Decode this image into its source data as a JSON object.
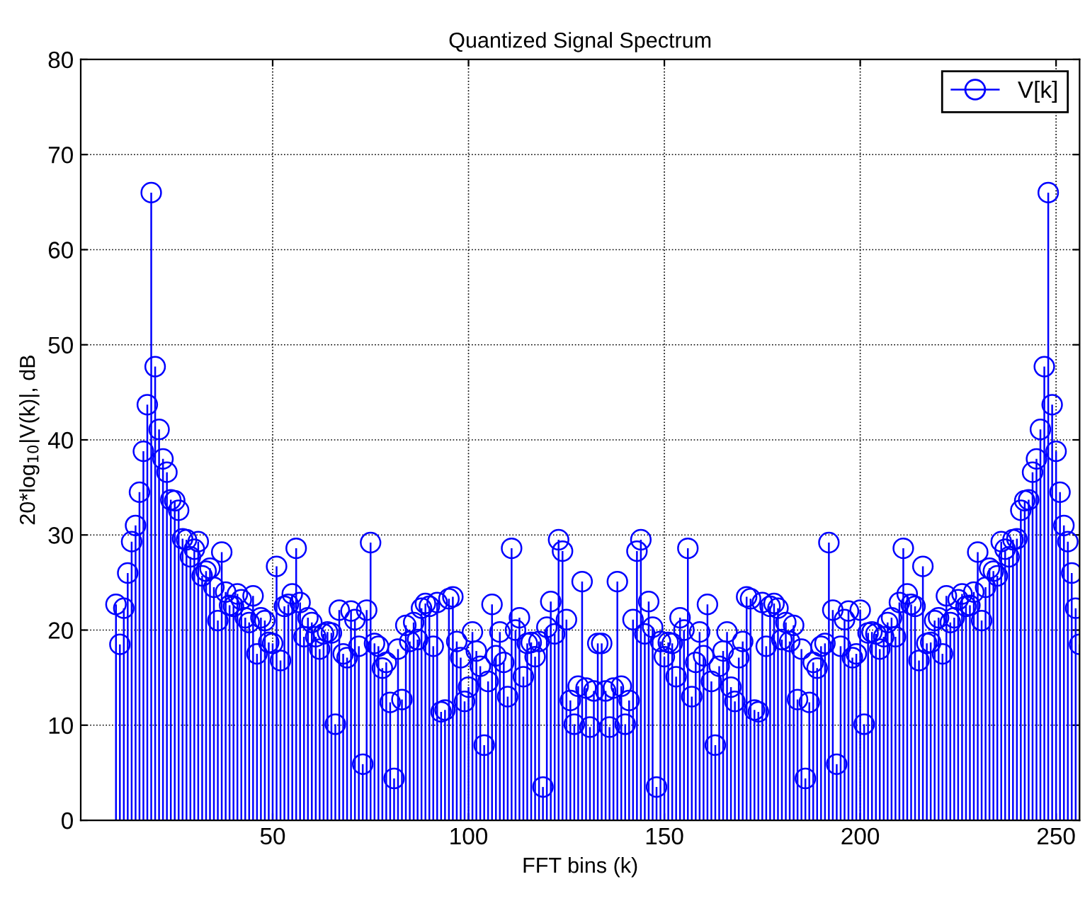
{
  "chart_data": {
    "type": "lollipop",
    "title": "Quantized Signal Spectrum",
    "xlabel": "FFT bins (k)",
    "ylabel": "20*log$_{10}$|V(k)|, dB",
    "xlim": [
      1,
      256
    ],
    "xticks": [
      50,
      100,
      150,
      200,
      250
    ],
    "ylim": [
      0,
      80
    ],
    "yticks": [
      0,
      10,
      20,
      30,
      40,
      50,
      60,
      70,
      80
    ],
    "grid": true,
    "legend": "top right",
    "marker": "circle",
    "series": [
      {
        "name": "V[k]",
        "color": "#0000ff",
        "x": [
          10,
          11,
          12,
          13,
          14,
          15,
          16,
          17,
          18,
          19,
          20,
          21,
          22,
          23,
          24,
          25,
          26,
          27,
          28,
          29,
          30,
          31,
          32,
          33,
          34,
          35,
          36,
          37,
          38,
          39,
          40,
          41,
          42,
          43,
          44,
          45,
          46,
          47,
          48,
          49,
          50,
          51,
          52,
          53,
          54,
          55,
          56,
          57,
          58,
          59,
          60,
          61,
          62,
          63,
          64,
          65,
          66,
          67,
          68,
          69,
          70,
          71,
          72,
          73,
          74,
          75,
          76,
          77,
          78,
          79,
          80,
          81,
          82,
          83,
          84,
          85,
          86,
          87,
          88,
          89,
          90,
          91,
          92,
          93,
          94,
          95,
          96,
          97,
          98,
          99,
          100,
          101,
          102,
          103,
          104,
          105,
          106,
          107,
          108,
          109,
          110,
          111,
          112,
          113,
          114,
          115,
          116,
          117,
          118,
          119,
          120,
          121,
          122,
          123,
          124,
          125,
          126,
          127,
          128,
          129,
          130,
          131,
          132,
          133,
          134,
          135,
          136,
          137,
          138,
          139,
          140,
          141,
          142,
          143,
          144,
          145,
          146,
          147,
          148,
          149,
          150,
          151,
          152,
          153,
          154,
          155,
          156,
          157,
          158,
          159,
          160,
          161,
          162,
          163,
          164,
          165,
          166,
          167,
          168,
          169,
          170,
          171,
          172,
          173,
          174,
          175,
          176,
          177,
          178,
          179,
          180,
          181,
          182,
          183,
          184,
          185,
          186,
          187,
          188,
          189,
          190,
          191,
          192,
          193,
          194,
          195,
          196,
          197,
          198,
          199,
          200,
          201,
          202,
          203,
          204,
          205,
          206,
          207,
          208,
          209,
          210,
          211,
          212,
          213,
          214,
          215,
          216,
          217,
          218,
          219,
          220,
          221,
          222,
          223,
          224,
          225,
          226,
          227,
          228,
          229,
          230,
          231,
          232,
          233,
          234,
          235,
          236,
          237,
          238,
          239,
          240,
          241,
          242,
          243,
          244,
          245,
          246,
          247,
          248,
          249,
          250,
          251,
          252,
          253,
          254,
          255,
          256
        ],
        "values": [
          22.7,
          18.5,
          22.3,
          26,
          29.3,
          31,
          34.5,
          38.8,
          43.7,
          66,
          47.7,
          41.1,
          38,
          36.6,
          33.7,
          33.6,
          32.6,
          29.6,
          29.5,
          27.7,
          28.5,
          29.3,
          25.7,
          26.2,
          26.5,
          24.5,
          21,
          28.2,
          24,
          22.6,
          22.5,
          23.8,
          23.2,
          21.3,
          20.8,
          23.6,
          17.5,
          21.3,
          21,
          18.7,
          18.6,
          26.7,
          16.8,
          22.5,
          22.7,
          23.8,
          28.6,
          22.9,
          19.3,
          21.3,
          20.8,
          19.3,
          18,
          19.6,
          19.8,
          19.7,
          10.1,
          22.1,
          17.5,
          17.1,
          22,
          21.1,
          18.3,
          5.9,
          22.1,
          29.2,
          18.6,
          18.3,
          16,
          16.6,
          12.4,
          4.4,
          18,
          12.7,
          20.5,
          18.8,
          20.8,
          19,
          22.3,
          22.8,
          22.5,
          18.3,
          22.9,
          11.4,
          11.6,
          23.3,
          23.5,
          18.8,
          17.1,
          12.5,
          14,
          19.8,
          17.8,
          16.2,
          7.9,
          14.6,
          22.7,
          17.3,
          19.8,
          16.6,
          13,
          28.6,
          20,
          21.3,
          15.1,
          18.6,
          18.7,
          17.2,
          18.8,
          3.5,
          20.3,
          23,
          19.6,
          29.5,
          28.3,
          21.1,
          12.6,
          10.1,
          14.1,
          25.1,
          13.9,
          9.8,
          13.6,
          18.6,
          18.6,
          13.6,
          9.8,
          13.9,
          25.1,
          14.1,
          10.1,
          12.6,
          21.1,
          28.3,
          29.5,
          19.6,
          23,
          20.3,
          3.5,
          18.8,
          17.2,
          18.7,
          18.6,
          15.1,
          21.3,
          20,
          28.6,
          13,
          16.6,
          19.8,
          17.3,
          22.7,
          14.6,
          7.9,
          16.2,
          17.8,
          19.8,
          14,
          12.5,
          17.1,
          18.8,
          23.5,
          23.3,
          11.6,
          11.4,
          22.9,
          18.3,
          22.5,
          22.8,
          22.3,
          19,
          20.8,
          18.8,
          20.5,
          12.7,
          18,
          4.4,
          12.4,
          16.6,
          16,
          18.3,
          18.6,
          29.2,
          22.1,
          5.9,
          18.3,
          21.1,
          22,
          17.1,
          17.5,
          22.1,
          10.1,
          19.7,
          19.8,
          19.6,
          18,
          19.3,
          20.8,
          21.3,
          19.3,
          22.9,
          28.6,
          23.8,
          22.7,
          22.5,
          16.8,
          26.7,
          18.6,
          18.7,
          21,
          21.3,
          17.5,
          23.6,
          20.8,
          21.3,
          23.2,
          23.8,
          22.5,
          22.6,
          24,
          28.2,
          21,
          24.5,
          26.5,
          26.2,
          25.7,
          29.3,
          28.5,
          27.7,
          29.5,
          29.6,
          32.6,
          33.6,
          33.7,
          36.6,
          38,
          41.1,
          47.7,
          66,
          43.7,
          38.8,
          34.5,
          31,
          29.3,
          26,
          22.3,
          18.5
        ]
      }
    ]
  }
}
